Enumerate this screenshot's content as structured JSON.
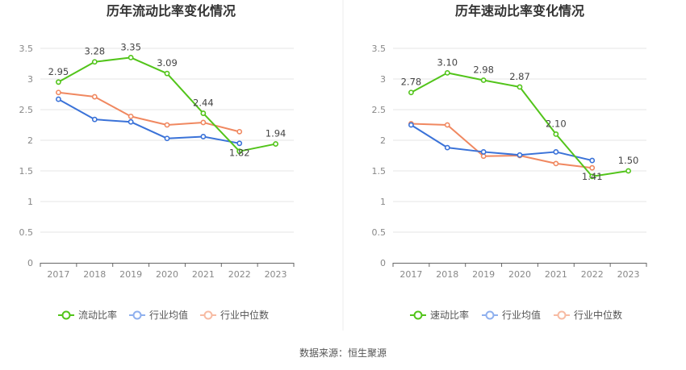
{
  "colors": {
    "primary": "#52c41a",
    "average": "#3a72d8",
    "median": "#f08860",
    "legend_average": "#8fb0ee",
    "legend_median": "#f7bba3"
  },
  "source": "数据来源：恒生聚源",
  "chart_data": [
    {
      "type": "line",
      "title": "历年流动比率变化情况",
      "x": [
        "2017",
        "2018",
        "2019",
        "2020",
        "2021",
        "2022",
        "2023"
      ],
      "yticks": [
        "0",
        "0.5",
        "1",
        "1.5",
        "2",
        "2.5",
        "3",
        "3.5"
      ],
      "ylim": [
        0,
        3.5
      ],
      "grid": true,
      "legend_position": "bottom",
      "series": [
        {
          "name": "流动比率",
          "key": "primary",
          "values": [
            2.95,
            3.28,
            3.35,
            3.09,
            2.44,
            1.82,
            1.94
          ],
          "labels": [
            "2.95",
            "3.28",
            "3.35",
            "3.09",
            "2.44",
            "1.82",
            "1.94"
          ]
        },
        {
          "name": "行业均值",
          "key": "average",
          "values": [
            2.67,
            2.34,
            2.3,
            2.03,
            2.06,
            1.95,
            null
          ]
        },
        {
          "name": "行业中位数",
          "key": "median",
          "values": [
            2.78,
            2.71,
            2.39,
            2.25,
            2.29,
            2.14,
            null
          ]
        }
      ]
    },
    {
      "type": "line",
      "title": "历年速动比率变化情况",
      "x": [
        "2017",
        "2018",
        "2019",
        "2020",
        "2021",
        "2022",
        "2023"
      ],
      "yticks": [
        "0",
        "0.5",
        "1",
        "1.5",
        "2",
        "2.5",
        "3",
        "3.5"
      ],
      "ylim": [
        0,
        3.5
      ],
      "grid": true,
      "legend_position": "bottom",
      "series": [
        {
          "name": "速动比率",
          "key": "primary",
          "values": [
            2.78,
            3.1,
            2.98,
            2.87,
            2.1,
            1.41,
            1.5
          ],
          "labels": [
            "2.78",
            "3.10",
            "2.98",
            "2.87",
            "2.10",
            "1.41",
            "1.50"
          ]
        },
        {
          "name": "行业均值",
          "key": "average",
          "values": [
            2.25,
            1.88,
            1.81,
            1.76,
            1.81,
            1.67,
            null
          ]
        },
        {
          "name": "行业中位数",
          "key": "median",
          "values": [
            2.27,
            2.25,
            1.74,
            1.75,
            1.62,
            1.55,
            null
          ]
        }
      ]
    }
  ]
}
